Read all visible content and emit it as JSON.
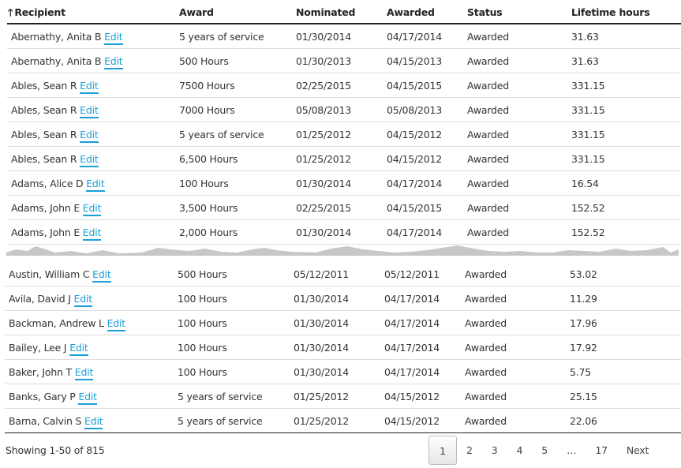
{
  "columns": [
    "Recipient",
    "Award",
    "Nominated",
    "Awarded",
    "Status",
    "Lifetime hours"
  ],
  "sort_icon": "arrow-up-icon",
  "edit_label": "Edit",
  "accent": "#1a9fd9",
  "rows_top": [
    [
      "Abernathy, Anita B",
      "5 years of service",
      "01/30/2014",
      "04/17/2014",
      "Awarded",
      "31.63"
    ],
    [
      "Abernathy, Anita B",
      "500 Hours",
      "01/30/2013",
      "04/15/2013",
      "Awarded",
      "31.63"
    ],
    [
      "Ables, Sean R",
      "7500 Hours",
      "02/25/2015",
      "04/15/2015",
      "Awarded",
      "331.15"
    ],
    [
      "Ables, Sean R",
      "7000 Hours",
      "05/08/2013",
      "05/08/2013",
      "Awarded",
      "331.15"
    ],
    [
      "Ables, Sean R",
      "5 years of service",
      "01/25/2012",
      "04/15/2012",
      "Awarded",
      "331.15"
    ],
    [
      "Ables, Sean R",
      "6,500 Hours",
      "01/25/2012",
      "04/15/2012",
      "Awarded",
      "331.15"
    ],
    [
      "Adams, Alice D",
      "100 Hours",
      "01/30/2014",
      "04/17/2014",
      "Awarded",
      "16.54"
    ],
    [
      "Adams, John E",
      "3,500 Hours",
      "02/25/2015",
      "04/15/2015",
      "Awarded",
      "152.52"
    ],
    [
      "Adams, John E",
      "2,000 Hours",
      "01/30/2014",
      "04/17/2014",
      "Awarded",
      "152.52"
    ]
  ],
  "rows_bottom": [
    [
      "Austin, William C",
      "500 Hours",
      "05/12/2011",
      "05/12/2011",
      "Awarded",
      "53.02"
    ],
    [
      "Avila, David J",
      "100 Hours",
      "01/30/2014",
      "04/17/2014",
      "Awarded",
      "11.29"
    ],
    [
      "Backman, Andrew L",
      "100 Hours",
      "01/30/2014",
      "04/17/2014",
      "Awarded",
      "17.96"
    ],
    [
      "Bailey, Lee J",
      "100 Hours",
      "01/30/2014",
      "04/17/2014",
      "Awarded",
      "17.92"
    ],
    [
      "Baker, John T",
      "100 Hours",
      "01/30/2014",
      "04/17/2014",
      "Awarded",
      "5.75"
    ],
    [
      "Banks, Gary P",
      "5 years of service",
      "01/25/2012",
      "04/15/2012",
      "Awarded",
      "25.15"
    ],
    [
      "Barna, Calvin S",
      "5 years of service",
      "01/25/2012",
      "04/15/2012",
      "Awarded",
      "22.06"
    ]
  ],
  "footer": {
    "info": "Showing 1-50 of 815",
    "pages": [
      "1",
      "2",
      "3",
      "4",
      "5",
      "…",
      "17",
      "Next"
    ],
    "current": "1"
  }
}
